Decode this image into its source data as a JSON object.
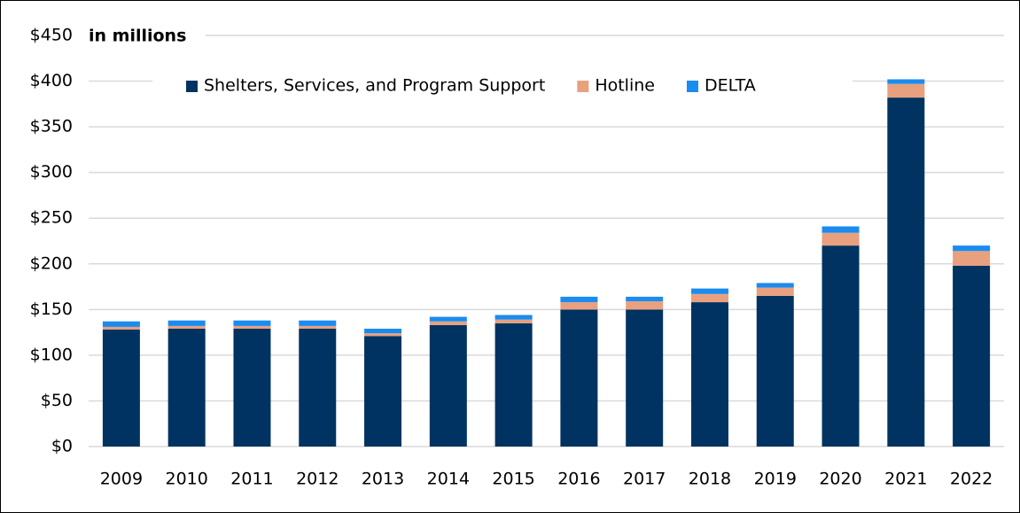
{
  "chart_data": {
    "type": "stacked_bar",
    "subtitle": "in millions",
    "categories": [
      "2009",
      "2010",
      "2011",
      "2012",
      "2013",
      "2014",
      "2015",
      "2016",
      "2017",
      "2018",
      "2019",
      "2020",
      "2021",
      "2022"
    ],
    "series": [
      {
        "name": "Shelters, Services, and Program Support",
        "color": "#003361",
        "values": [
          128,
          129,
          129,
          129,
          121,
          133,
          135,
          150,
          150,
          158,
          165,
          220,
          382,
          198
        ]
      },
      {
        "name": "Hotline",
        "color": "#e9a07e",
        "values": [
          3,
          3,
          3,
          3,
          3,
          4,
          4,
          8,
          9,
          9,
          9,
          14,
          15,
          16
        ]
      },
      {
        "name": "DELTA",
        "color": "#1a8cf0",
        "values": [
          6,
          6,
          6,
          6,
          5,
          5,
          5,
          6,
          5,
          6,
          5,
          7,
          5,
          6
        ]
      }
    ],
    "ylim": [
      0,
      450
    ],
    "yticks": [
      {
        "value": 0,
        "label": "$0"
      },
      {
        "value": 50,
        "label": "$50"
      },
      {
        "value": 100,
        "label": "$100"
      },
      {
        "value": 150,
        "label": "$150"
      },
      {
        "value": 200,
        "label": "$200"
      },
      {
        "value": 250,
        "label": "$250"
      },
      {
        "value": 300,
        "label": "$300"
      },
      {
        "value": 350,
        "label": "$350"
      },
      {
        "value": 400,
        "label": "$400"
      },
      {
        "value": 450,
        "label": "$450"
      }
    ],
    "grid": true,
    "legend": "top"
  }
}
